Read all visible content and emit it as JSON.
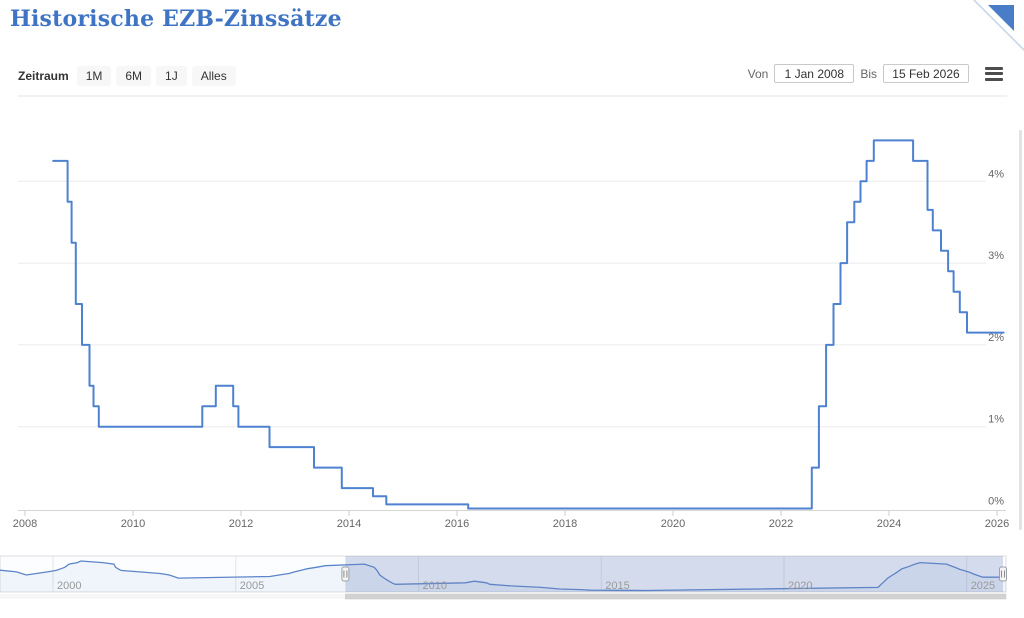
{
  "header": {
    "title": "Historische EZB-Zinssätze",
    "title_color": "#3f74c4"
  },
  "corner_ribbon": {
    "icon": "corner-fold-icon",
    "color": "#4a7dc8",
    "band_color": "#c9d6ea"
  },
  "toolbar": {
    "zeitraum_label": "Zeitraum",
    "range_buttons": [
      {
        "label": "1M"
      },
      {
        "label": "6M"
      },
      {
        "label": "1J"
      },
      {
        "label": "Alles"
      }
    ],
    "von_label": "Von",
    "von_value": "1 Jan 2008",
    "bis_label": "Bis",
    "bis_value": "15 Feb 2026",
    "menu_icon": "hamburger-menu-icon"
  },
  "chart_data": {
    "type": "line",
    "step": true,
    "title": "Historische EZB-Zinssätze",
    "unit": "%",
    "series": [
      {
        "name": "EZB-Zinssatz",
        "points": [
          [
            "1998-07-01",
            3.3
          ],
          [
            "1999-01-01",
            3.0
          ],
          [
            "1999-04-09",
            2.5
          ],
          [
            "1999-11-05",
            3.0
          ],
          [
            "2000-02-04",
            3.25
          ],
          [
            "2000-03-17",
            3.5
          ],
          [
            "2000-04-28",
            3.75
          ],
          [
            "2000-06-09",
            4.25
          ],
          [
            "2000-09-01",
            4.5
          ],
          [
            "2000-10-06",
            4.75
          ],
          [
            "2001-05-11",
            4.5
          ],
          [
            "2001-08-31",
            4.25
          ],
          [
            "2001-09-18",
            3.75
          ],
          [
            "2001-11-09",
            3.25
          ],
          [
            "2002-12-06",
            2.75
          ],
          [
            "2003-03-07",
            2.5
          ],
          [
            "2003-06-06",
            2.0
          ],
          [
            "2005-12-06",
            2.25
          ],
          [
            "2006-03-08",
            2.5
          ],
          [
            "2006-06-15",
            2.75
          ],
          [
            "2006-08-09",
            3.0
          ],
          [
            "2006-10-11",
            3.25
          ],
          [
            "2006-12-13",
            3.5
          ],
          [
            "2007-03-14",
            3.75
          ],
          [
            "2007-06-13",
            4.0
          ],
          [
            "2008-07-09",
            4.25
          ],
          [
            "2008-10-15",
            3.75
          ],
          [
            "2008-11-12",
            3.25
          ],
          [
            "2008-12-10",
            2.5
          ],
          [
            "2009-01-21",
            2.0
          ],
          [
            "2009-03-11",
            1.5
          ],
          [
            "2009-04-08",
            1.25
          ],
          [
            "2009-05-13",
            1.0
          ],
          [
            "2011-04-13",
            1.25
          ],
          [
            "2011-07-13",
            1.5
          ],
          [
            "2011-11-09",
            1.25
          ],
          [
            "2011-12-14",
            1.0
          ],
          [
            "2012-07-11",
            0.75
          ],
          [
            "2013-05-08",
            0.5
          ],
          [
            "2013-11-13",
            0.25
          ],
          [
            "2014-06-11",
            0.15
          ],
          [
            "2014-09-10",
            0.05
          ],
          [
            "2016-03-16",
            0.0
          ],
          [
            "2022-07-27",
            0.5
          ],
          [
            "2022-09-14",
            1.25
          ],
          [
            "2022-11-02",
            2.0
          ],
          [
            "2022-12-21",
            2.5
          ],
          [
            "2023-02-08",
            3.0
          ],
          [
            "2023-03-22",
            3.5
          ],
          [
            "2023-05-10",
            3.75
          ],
          [
            "2023-06-21",
            4.0
          ],
          [
            "2023-08-02",
            4.25
          ],
          [
            "2023-09-20",
            4.5
          ],
          [
            "2024-06-12",
            4.25
          ],
          [
            "2024-09-18",
            3.65
          ],
          [
            "2024-10-23",
            3.4
          ],
          [
            "2024-12-18",
            3.15
          ],
          [
            "2025-02-05",
            2.9
          ],
          [
            "2025-03-12",
            2.65
          ],
          [
            "2025-04-23",
            2.4
          ],
          [
            "2025-06-11",
            2.15
          ]
        ]
      }
    ],
    "yaxis": {
      "position": "right",
      "min": 0,
      "max": 4.5,
      "grid": true,
      "ticks": [
        {
          "value": 0,
          "label": "0%"
        },
        {
          "value": 1,
          "label": "1%"
        },
        {
          "value": 2,
          "label": "2%"
        },
        {
          "value": 3,
          "label": "3%"
        },
        {
          "value": 4,
          "label": "4%"
        }
      ]
    },
    "xaxis": {
      "start": "2008-01-01",
      "end": "2026-02-15",
      "tick_years": [
        2008,
        2010,
        2012,
        2014,
        2016,
        2018,
        2020,
        2022,
        2024,
        2026
      ]
    },
    "navigator": {
      "tick_years": [
        2000,
        2005,
        2010,
        2015,
        2020,
        2025
      ],
      "selected_from": "2008-01-01",
      "selected_to": "2026-02-15"
    },
    "colors": {
      "line": "#4e82d0",
      "navigator_line": "#5c85c9",
      "navigator_fill": "rgba(92,133,201,0.07)",
      "selected_mask": "rgba(104,131,190,0.27)",
      "grid": "#ebebeb",
      "axis_label": "#666666"
    }
  }
}
